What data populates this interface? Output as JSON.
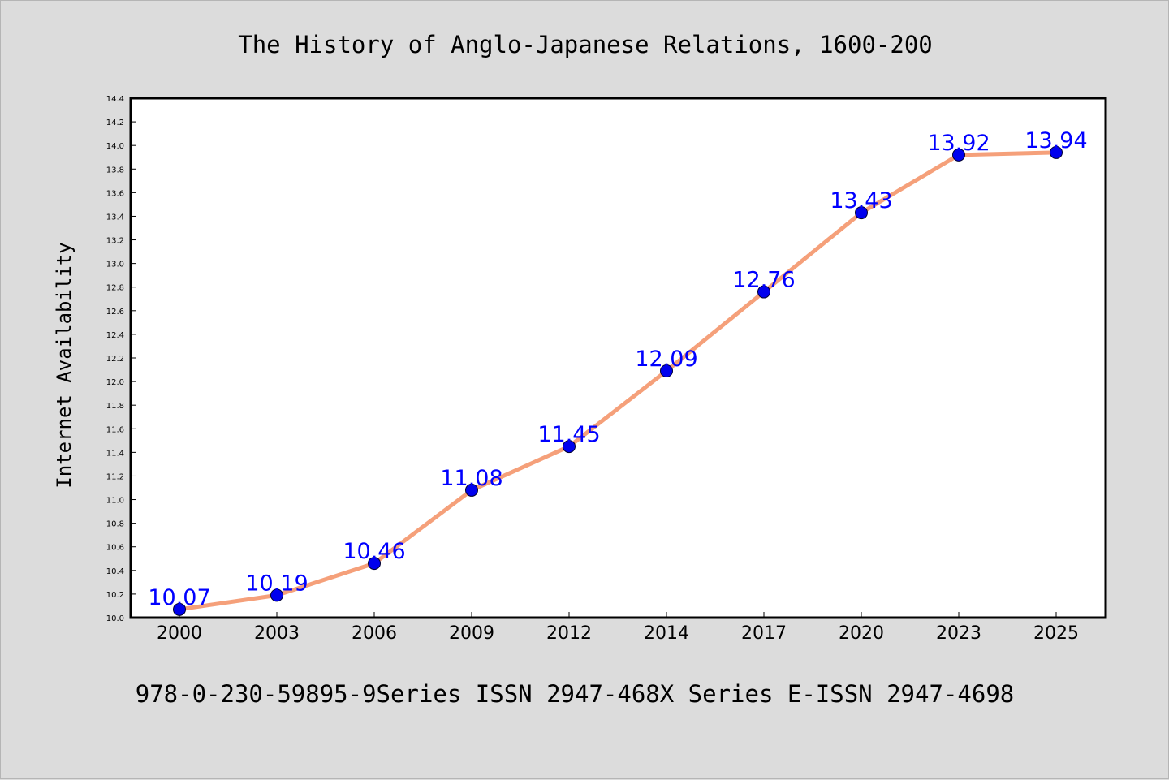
{
  "chart_data": {
    "type": "line",
    "title": "The History of Anglo-Japanese Relations, 1600-200",
    "ylabel": "Internet Availability",
    "xlabel": "",
    "caption": "978-0-230-59895-9Series ISSN 2947-468X Series E-ISSN 2947-4698",
    "categories": [
      "2000",
      "2003",
      "2006",
      "2009",
      "2012",
      "2014",
      "2017",
      "2020",
      "2023",
      "2025"
    ],
    "values": [
      10.07,
      10.19,
      10.46,
      11.08,
      11.45,
      12.09,
      12.76,
      13.43,
      13.92,
      13.94
    ],
    "data_labels": [
      "10.07",
      "10.19",
      "10.46",
      "11.08",
      "11.45",
      "12.09",
      "12.76",
      "13.43",
      "13.92",
      "13.94"
    ],
    "ylim": [
      10.0,
      14.4
    ],
    "yticks": [
      "10.0",
      "10.2",
      "10.4",
      "10.6",
      "10.8",
      "11.0",
      "11.2",
      "11.4",
      "11.6",
      "11.8",
      "12.0",
      "12.2",
      "12.4",
      "12.6",
      "12.8",
      "13.0",
      "13.2",
      "13.4",
      "13.6",
      "13.8",
      "14.0",
      "14.2",
      "14.4"
    ],
    "grid": false,
    "legend": "none",
    "colors": {
      "line": "#f5a07a",
      "marker": "#0000ee",
      "label": "#0000ff",
      "background": "#dcdcdc",
      "plot_area": "#ffffff"
    }
  }
}
